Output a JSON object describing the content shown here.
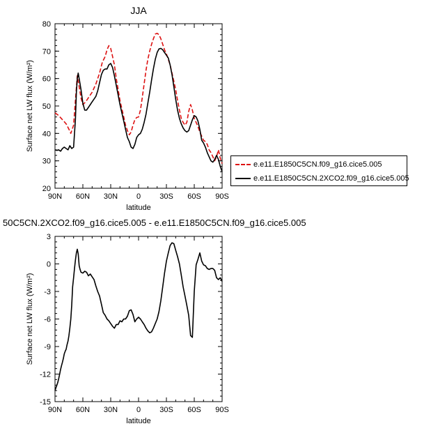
{
  "colors": {
    "background": "#ffffff",
    "axis": "#000000",
    "series_red": "#dd1111",
    "series_black": "#000000"
  },
  "legend": {
    "entries": [
      {
        "label": "e.e11.E1850C5CN.f09_g16.cice5.005",
        "color": "#dd1111",
        "dash": "dashed"
      },
      {
        "label": "e.e11.E1850C5CN.2XCO2.f09_g16.cice5.005",
        "color": "#000000",
        "dash": "solid"
      }
    ]
  },
  "chart_data": [
    {
      "type": "line",
      "title": "JJA",
      "xlabel": "latitude",
      "ylabel": "Surface net LW flux (W/m²)",
      "xlim": [
        90,
        -90
      ],
      "ylim": [
        20,
        80
      ],
      "x_ticks": [
        90,
        60,
        30,
        0,
        -30,
        -60,
        -90
      ],
      "x_ticklabels": [
        "90N",
        "60N",
        "30N",
        "0",
        "30S",
        "60S",
        "90S"
      ],
      "y_ticks": [
        20,
        30,
        40,
        50,
        60,
        70,
        80
      ],
      "y_ticklabels": [
        "20",
        "30",
        "40",
        "50",
        "60",
        "70",
        "80"
      ],
      "series": [
        {
          "name": "e.e11.E1850C5CN.f09_g16.cice5.005",
          "color": "#dd1111",
          "dash": "dashed",
          "x": [
            90,
            86,
            82,
            78,
            75,
            73,
            70,
            68,
            66,
            64,
            62,
            60,
            57,
            54,
            50,
            46,
            42,
            39,
            36,
            34,
            32,
            30,
            28,
            26,
            24,
            22,
            20,
            18,
            16,
            14,
            12,
            10,
            8,
            6,
            4,
            2,
            0,
            -2,
            -4,
            -6,
            -8,
            -10,
            -12,
            -14,
            -16,
            -18,
            -20,
            -22,
            -24,
            -26,
            -28,
            -30,
            -32,
            -34,
            -36,
            -38,
            -40,
            -42,
            -44,
            -46,
            -48,
            -50,
            -52,
            -54,
            -56,
            -58,
            -60,
            -62,
            -64,
            -66,
            -68,
            -70,
            -72,
            -74,
            -76,
            -78,
            -80,
            -82,
            -84,
            -86,
            -88,
            -90
          ],
          "y": [
            47.5,
            46.5,
            45,
            43.5,
            41.5,
            40,
            43,
            52,
            61,
            57,
            53,
            50.5,
            51.5,
            53,
            55,
            58,
            62,
            66,
            68,
            70.5,
            72,
            71,
            68,
            65,
            60,
            56,
            52,
            49,
            46,
            43,
            41,
            39.5,
            40.5,
            43,
            45,
            45.8,
            46,
            48.5,
            53,
            58,
            63,
            67,
            70,
            72.5,
            74.5,
            76.2,
            76.5,
            76,
            74.5,
            72.5,
            70.5,
            69,
            67,
            65,
            62,
            59,
            56,
            52,
            48.5,
            45.5,
            44,
            43,
            44,
            48,
            50.5,
            48.5,
            45.5,
            44,
            42.5,
            40.5,
            39,
            37.5,
            37,
            36,
            34,
            33,
            31.5,
            30,
            31.5,
            34,
            31,
            29
          ]
        },
        {
          "name": "e.e11.E1850C5CN.2XCO2.f09_g16.cice5.005",
          "color": "#000000",
          "dash": "solid",
          "x": [
            90,
            88,
            86,
            84,
            82,
            80,
            78,
            76,
            74,
            72,
            70,
            68,
            67,
            66,
            65,
            64,
            62,
            60,
            58,
            56,
            54,
            52,
            50,
            48,
            46,
            44,
            42,
            40,
            38,
            36,
            34,
            32,
            30,
            28,
            26,
            24,
            22,
            20,
            18,
            16,
            14,
            12,
            10,
            8,
            6,
            4,
            2,
            0,
            -2,
            -4,
            -6,
            -8,
            -10,
            -12,
            -14,
            -16,
            -18,
            -20,
            -22,
            -24,
            -26,
            -28,
            -30,
            -32,
            -34,
            -36,
            -38,
            -40,
            -42,
            -44,
            -46,
            -48,
            -50,
            -52,
            -54,
            -56,
            -58,
            -60,
            -62,
            -64,
            -66,
            -68,
            -70,
            -72,
            -74,
            -76,
            -78,
            -80,
            -82,
            -84,
            -86,
            -88,
            -90
          ],
          "y": [
            34,
            33.8,
            34,
            33.5,
            34.5,
            35,
            34.5,
            34,
            35.5,
            34.5,
            35,
            45,
            55,
            60,
            62,
            60,
            56,
            51,
            48.5,
            48.5,
            49.5,
            50.5,
            51.5,
            52.5,
            53.5,
            55.5,
            58.5,
            61.5,
            63,
            63.5,
            63.5,
            65,
            65.5,
            64,
            61,
            57.5,
            54,
            50.5,
            47.5,
            44.5,
            41.5,
            38.5,
            37,
            35,
            34.5,
            36,
            38.5,
            39.5,
            40,
            41.5,
            44,
            47,
            51,
            55,
            59.5,
            63.5,
            67,
            69.5,
            70.8,
            71,
            70.5,
            69.5,
            68.5,
            67.5,
            65,
            61.5,
            57,
            52.5,
            48.5,
            45.5,
            43.5,
            42,
            41,
            40.5,
            41,
            43,
            45,
            46.5,
            46,
            44.5,
            41.5,
            37.5,
            36.5,
            35,
            33,
            31.5,
            30,
            29.5,
            30.5,
            32,
            30.5,
            28,
            26
          ]
        }
      ]
    },
    {
      "type": "line",
      "title": "50C5CN.2XCO2.f09_g16.cice5.005 - e.e11.E1850C5CN.f09_g16.cice5.005",
      "xlabel": "latitude",
      "ylabel": "Surface net LW flux (W/m²)",
      "xlim": [
        90,
        -90
      ],
      "ylim": [
        -15,
        3
      ],
      "x_ticks": [
        90,
        60,
        30,
        0,
        -30,
        -60,
        -90
      ],
      "x_ticklabels": [
        "90N",
        "60N",
        "30N",
        "0",
        "30S",
        "60S",
        "90S"
      ],
      "y_ticks": [
        -15,
        -12,
        -9,
        -6,
        -3,
        0,
        3
      ],
      "y_ticklabels": [
        "-15",
        "-12",
        "-9",
        "-6",
        "-3",
        "0",
        "3"
      ],
      "series": [
        {
          "name": "",
          "color": "#000000",
          "dash": "solid",
          "x": [
            90,
            89,
            88,
            87,
            86,
            85,
            84,
            83,
            82,
            81,
            80,
            79,
            78,
            77,
            76,
            75,
            74,
            73,
            72,
            71,
            70,
            69,
            68,
            67,
            66,
            65,
            64,
            63,
            62,
            60,
            58,
            56,
            54,
            52,
            50,
            48,
            46,
            44,
            42,
            40,
            38,
            36,
            34,
            32,
            30,
            28,
            26,
            24,
            22,
            20,
            18,
            16,
            14,
            12,
            10,
            8,
            6,
            4,
            2,
            0,
            -2,
            -4,
            -6,
            -8,
            -10,
            -12,
            -14,
            -16,
            -18,
            -20,
            -22,
            -24,
            -26,
            -28,
            -30,
            -32,
            -34,
            -36,
            -38,
            -40,
            -42,
            -44,
            -46,
            -48,
            -50,
            -52,
            -54,
            -56,
            -58,
            -60,
            -62,
            -64,
            -66,
            -68,
            -70,
            -72,
            -74,
            -76,
            -78,
            -80,
            -82,
            -84,
            -86,
            -88,
            -90
          ],
          "y": [
            -13.8,
            -13.5,
            -13.2,
            -12.9,
            -12.5,
            -12,
            -11.5,
            -11.1,
            -10.7,
            -10.3,
            -9.8,
            -9.5,
            -9.3,
            -8.8,
            -8.4,
            -7.8,
            -7,
            -6,
            -4.5,
            -2.5,
            -1.5,
            -0.5,
            0.4,
            1.2,
            1.6,
            1.1,
            -0.2,
            -0.6,
            -0.9,
            -1,
            -0.8,
            -0.9,
            -1.3,
            -1.1,
            -1.4,
            -1.7,
            -2.4,
            -3,
            -3.5,
            -4.4,
            -5.3,
            -5.6,
            -6,
            -6.2,
            -6.5,
            -6.8,
            -7,
            -6.6,
            -6.6,
            -6.2,
            -6.3,
            -6,
            -6,
            -5.7,
            -5.1,
            -5,
            -5.5,
            -6.3,
            -6,
            -5.8,
            -6,
            -6.3,
            -6.6,
            -7,
            -7.3,
            -7.5,
            -7.4,
            -7,
            -6.5,
            -6,
            -5.2,
            -4,
            -2.5,
            -1,
            0.3,
            1.2,
            2,
            2.3,
            2.2,
            1.5,
            0.8,
            0,
            -1.2,
            -2.5,
            -3.5,
            -4.5,
            -5.6,
            -7.8,
            -8,
            -3,
            -0.1,
            0.5,
            1.2,
            0.3,
            -0.1,
            -0.2,
            -0.5,
            -0.6,
            -0.5,
            -0.5,
            -0.7,
            -1.5,
            -1.7,
            -1.5,
            -1.9
          ]
        }
      ]
    }
  ]
}
